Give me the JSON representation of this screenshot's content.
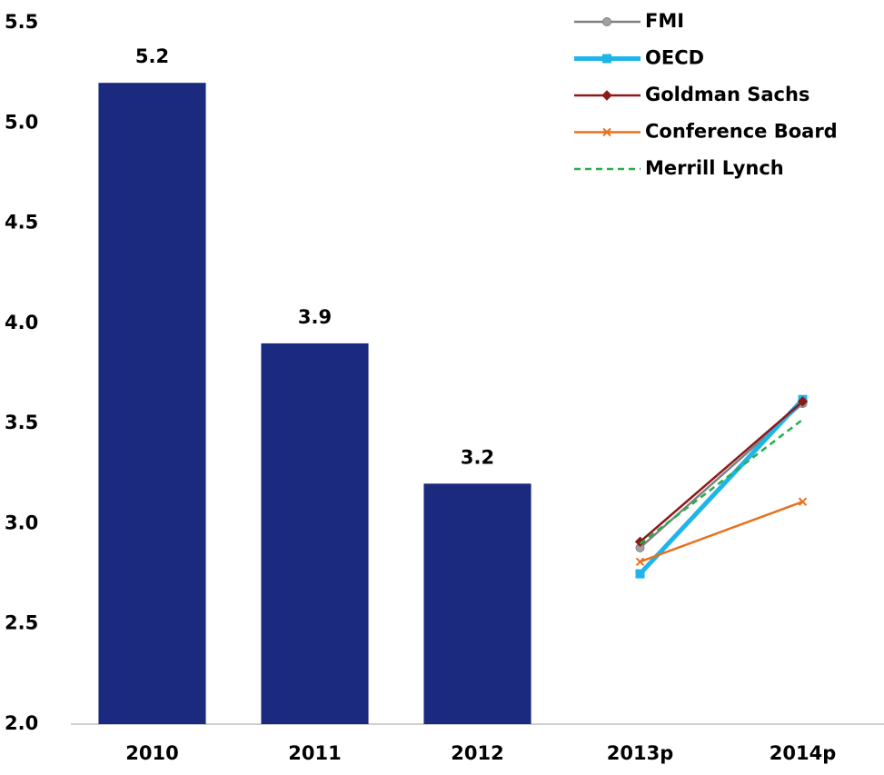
{
  "chart_data": {
    "type": "combo",
    "categories": [
      "2010",
      "2011",
      "2012",
      "2013p",
      "2014p"
    ],
    "series": [
      {
        "type": "bar",
        "color": "#1b2a7e",
        "values": [
          5.2,
          3.9,
          3.2,
          null,
          null
        ]
      },
      {
        "type": "line",
        "name": "FMI",
        "color": "#808080",
        "marker": "circle",
        "linestyle": "solid",
        "values": [
          null,
          null,
          null,
          2.88,
          3.6
        ]
      },
      {
        "type": "line",
        "name": "OECD",
        "color": "#1fb4ea",
        "marker": "square",
        "linestyle": "thick",
        "values": [
          null,
          null,
          null,
          2.75,
          3.62
        ]
      },
      {
        "type": "line",
        "name": "Goldman Sachs",
        "color": "#8b1a1a",
        "marker": "diamond",
        "linestyle": "solid",
        "values": [
          null,
          null,
          null,
          2.91,
          3.61
        ]
      },
      {
        "type": "line",
        "name": "Conference Board",
        "color": "#e8711c",
        "marker": "x",
        "linestyle": "solid",
        "values": [
          null,
          null,
          null,
          2.81,
          3.11
        ]
      },
      {
        "type": "line",
        "name": "Merrill Lynch",
        "color": "#22b04b",
        "marker": "none",
        "linestyle": "dashed",
        "values": [
          null,
          null,
          null,
          2.9,
          3.52
        ]
      }
    ],
    "ylim": [
      2,
      5.5
    ],
    "yticks": [
      {
        "value": 2,
        "label": "2.0"
      },
      2.5,
      {
        "value": 3,
        "label": "3.0"
      },
      3.5,
      {
        "value": 4,
        "label": "4.0"
      },
      4.5,
      {
        "value": 5,
        "label": "5.0"
      },
      5.5
    ],
    "grid": false,
    "legend": "top-right"
  }
}
